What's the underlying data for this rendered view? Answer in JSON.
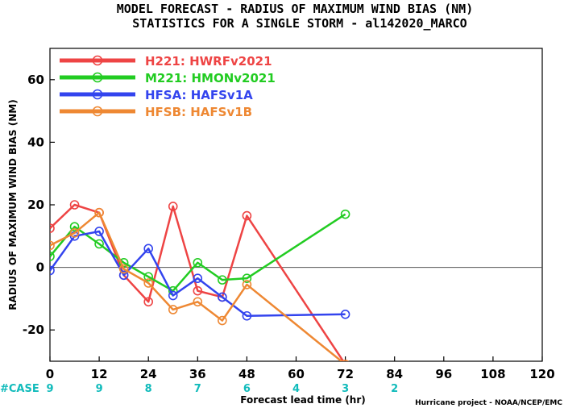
{
  "title": {
    "line1": "MODEL FORECAST - RADIUS OF MAXIMUM WIND BIAS (NM)",
    "line2": "STATISTICS FOR A SINGLE STORM - al142020_MARCO"
  },
  "case_label": "#CASE",
  "credit": "Hurricane project - NOAA/NCEP/EMC",
  "chart_data": {
    "type": "line",
    "xlabel": "Forecast lead time (hr)",
    "ylabel": "RADIUS OF MAXIMUM WIND BIAS (NM)",
    "xlim": [
      0,
      120
    ],
    "ylim": [
      -30,
      70
    ],
    "x_ticks": [
      "0",
      "12",
      "24",
      "36",
      "48",
      "60",
      "72",
      "84",
      "96",
      "108",
      "120"
    ],
    "y_ticks": [
      "-20",
      "0",
      "20",
      "40",
      "60"
    ],
    "zero_line": true,
    "legend_position": "top-left",
    "series": [
      {
        "name": "H221: HWRFv2021",
        "color": "#ee4444",
        "points": [
          [
            0,
            12.5
          ],
          [
            6,
            20
          ],
          [
            12,
            17.5
          ],
          [
            18,
            -2.5
          ],
          [
            24,
            -11
          ],
          [
            30,
            19.5
          ],
          [
            36,
            -7.5
          ],
          [
            42,
            -9.5
          ],
          [
            48,
            16.5
          ],
          [
            72,
            -31
          ]
        ]
      },
      {
        "name": "M221: HMONv2021",
        "color": "#22cc22",
        "points": [
          [
            0,
            3.5
          ],
          [
            6,
            13
          ],
          [
            12,
            7.5
          ],
          [
            18,
            1.5
          ],
          [
            24,
            -3
          ],
          [
            30,
            -7.5
          ],
          [
            36,
            1.5
          ],
          [
            42,
            -4
          ],
          [
            48,
            -3.5
          ],
          [
            72,
            17
          ]
        ]
      },
      {
        "name": "HFSA: HAFSv1A",
        "color": "#3344ee",
        "points": [
          [
            0,
            -1
          ],
          [
            6,
            10
          ],
          [
            12,
            11.5
          ],
          [
            18,
            -2.5
          ],
          [
            24,
            6
          ],
          [
            30,
            -9
          ],
          [
            36,
            -3.5
          ],
          [
            42,
            -9.5
          ],
          [
            48,
            -15.5
          ],
          [
            72,
            -15
          ]
        ]
      },
      {
        "name": "HFSB: HAFSv1B",
        "color": "#ee8833",
        "points": [
          [
            0,
            7
          ],
          [
            6,
            11
          ],
          [
            12,
            17.5
          ],
          [
            18,
            -0.5
          ],
          [
            24,
            -5
          ],
          [
            30,
            -13.5
          ],
          [
            36,
            -11
          ],
          [
            42,
            -17
          ],
          [
            48,
            -5.5
          ],
          [
            72,
            -31
          ]
        ]
      }
    ],
    "cases": [
      {
        "x": 0,
        "n": "9"
      },
      {
        "x": 12,
        "n": "9"
      },
      {
        "x": 24,
        "n": "8"
      },
      {
        "x": 36,
        "n": "7"
      },
      {
        "x": 48,
        "n": "6"
      },
      {
        "x": 60,
        "n": "4"
      },
      {
        "x": 72,
        "n": "3"
      },
      {
        "x": 84,
        "n": "2"
      }
    ]
  }
}
